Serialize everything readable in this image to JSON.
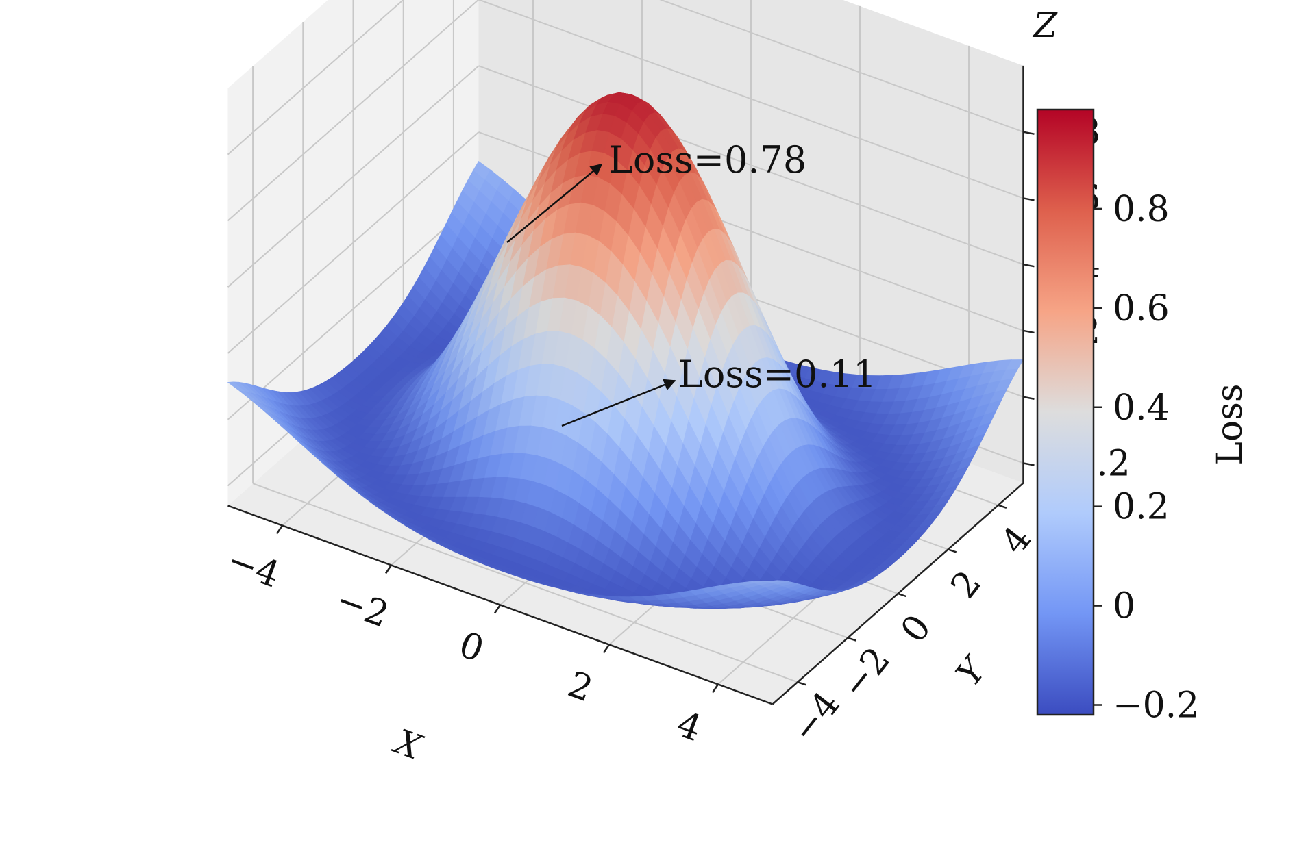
{
  "chart_data": {
    "type": "surface3d",
    "function": "z = sin(sqrt(x^2 + y^2)) / sqrt(x^2 + y^2), rescaled to the Z range shown",
    "x": {
      "label": "X",
      "ticks": [
        "−4",
        "−2",
        "0",
        "2",
        "4"
      ],
      "range": [
        -5,
        5
      ]
    },
    "y": {
      "label": "Y",
      "ticks": [
        "−4",
        "−2",
        "0",
        "2",
        "4"
      ],
      "range": [
        -5,
        5
      ]
    },
    "z": {
      "label": "Z",
      "ticks": [
        "−0.2",
        "0",
        "0.2",
        "0.4",
        "0.6",
        "0.8"
      ],
      "range": [
        -0.26,
        1.0
      ]
    },
    "colormap": "coolwarm",
    "colormap_stops": [
      "#3b4cc0",
      "#7396f5",
      "#b0cbfc",
      "#dddddd",
      "#f6a486",
      "#de604d",
      "#b40426"
    ],
    "colorbar": {
      "label": "Loss",
      "ticks": [
        "−0.2",
        "0",
        "0.2",
        "0.4",
        "0.6",
        "0.8"
      ],
      "tick_values": [
        -0.2,
        0.0,
        0.2,
        0.4,
        0.6,
        0.8
      ],
      "range": [
        -0.22,
        1.0
      ]
    },
    "annotations": [
      {
        "text": "Loss=0.78"
      },
      {
        "text": "Loss=0.11"
      }
    ],
    "grid": true,
    "pane_color": "#ebebeb"
  }
}
